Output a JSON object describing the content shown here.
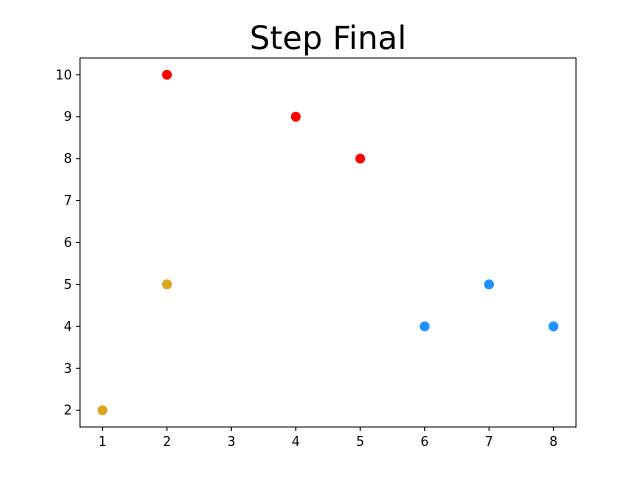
{
  "chart_data": {
    "type": "scatter",
    "title": "Step Final",
    "xlabel": "",
    "ylabel": "",
    "xlim": [
      0.65,
      8.35
    ],
    "ylim": [
      1.6,
      10.4
    ],
    "xticks": [
      1,
      2,
      3,
      4,
      5,
      6,
      7,
      8
    ],
    "yticks": [
      2,
      3,
      4,
      5,
      6,
      7,
      8,
      9,
      10
    ],
    "grid": false,
    "legend": "none",
    "series": [
      {
        "color": "#ff0000",
        "x": [
          2,
          4,
          5
        ],
        "y": [
          10,
          9,
          8
        ]
      },
      {
        "color": "#daa520",
        "x": [
          1,
          2
        ],
        "y": [
          2,
          5
        ]
      },
      {
        "color": "#1e90ff",
        "x": [
          6,
          7,
          8
        ],
        "y": [
          4,
          5,
          4
        ]
      }
    ]
  }
}
